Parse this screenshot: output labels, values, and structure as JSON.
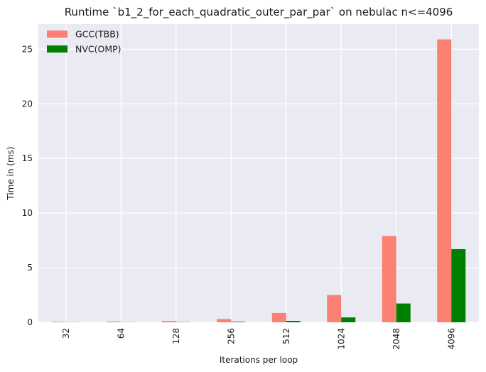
{
  "chart_data": {
    "type": "bar",
    "title": "Runtime `b1_2_for_each_quadratic_outer_par_par` on nebulac n<=4096",
    "xlabel": "Iterations per loop",
    "ylabel": "Time in (ms)",
    "categories": [
      "32",
      "64",
      "128",
      "256",
      "512",
      "1024",
      "2048",
      "4096"
    ],
    "ylim": [
      0,
      27.3
    ],
    "yticks": [
      0,
      5,
      10,
      15,
      20,
      25
    ],
    "grid": true,
    "legend_position": "top-left",
    "background": "#eaeaf2",
    "series": [
      {
        "name": "GCC(TBB)",
        "color": "#fa8072",
        "values": [
          0.05,
          0.07,
          0.12,
          0.3,
          0.85,
          2.5,
          7.9,
          25.9
        ]
      },
      {
        "name": "NVC(OMP)",
        "color": "#008000",
        "values": [
          0.01,
          0.01,
          0.02,
          0.05,
          0.13,
          0.45,
          1.72,
          6.7
        ]
      }
    ]
  }
}
